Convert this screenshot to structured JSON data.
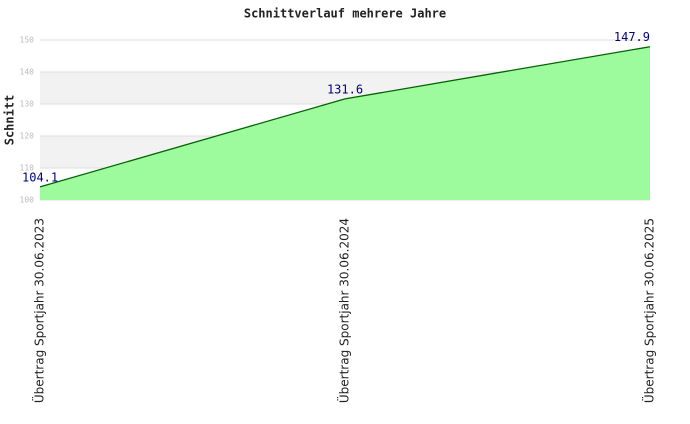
{
  "chart_data": {
    "type": "area",
    "title": "Schnittverlauf mehrere Jahre",
    "y_label": "Schnitt",
    "categories": [
      "Übertrag Sportjahr 30.06.2023",
      "Übertrag Sportjahr 30.06.2024",
      "Übertrag Sportjahr 30.06.2025"
    ],
    "values": [
      104.1,
      131.6,
      147.9
    ],
    "color": "#98fb98",
    "line_color": "#006400",
    "label_color": "#000080",
    "ylim": [
      100,
      150
    ],
    "yticks": [
      100,
      110,
      120,
      130,
      140,
      150
    ],
    "grid": true,
    "band_colors": [
      "#ffffff",
      "#f2f2f2"
    ]
  }
}
